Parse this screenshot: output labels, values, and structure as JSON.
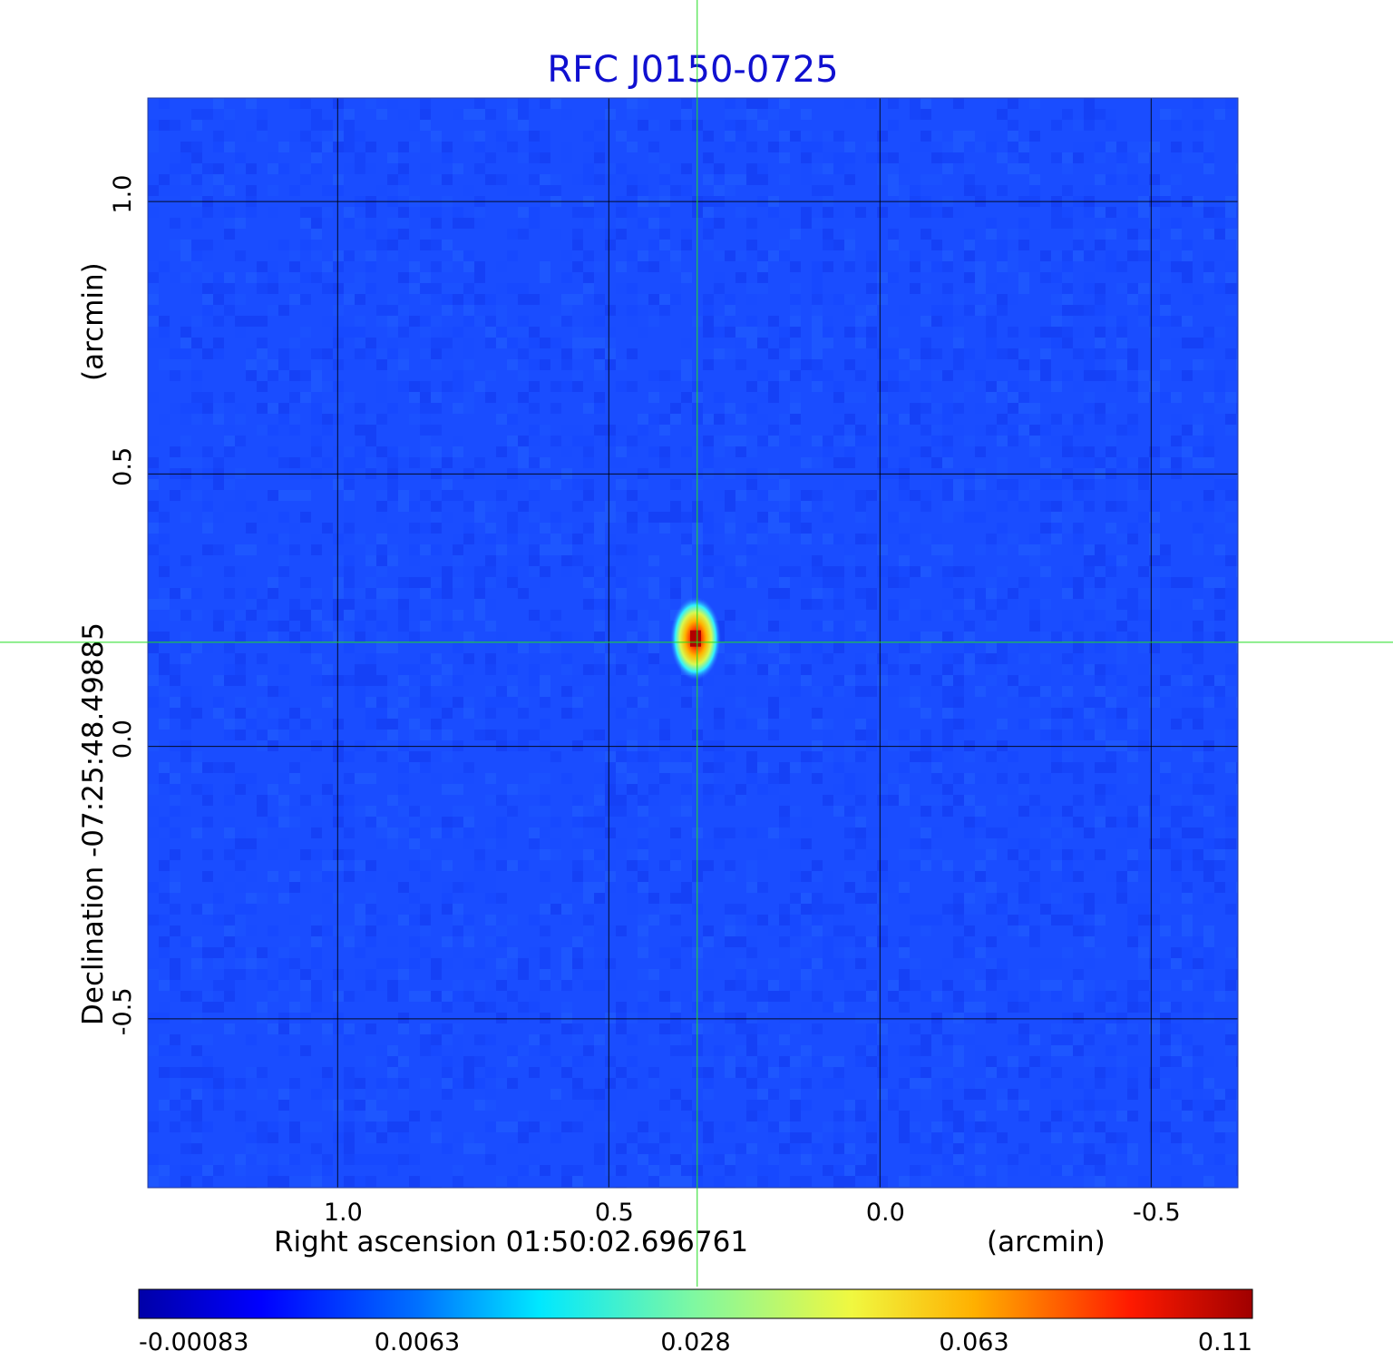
{
  "chart_data": {
    "type": "heatmap",
    "title": "RFC J0150-0725",
    "xlabel": "Right ascension  01:50:02.696761",
    "ylabel": "Declination  -07:25:48.49885",
    "x_unit": "(arcmin)",
    "y_unit": "(arcmin)",
    "x_ticks": [
      {
        "value": 1.0,
        "label": "1.0"
      },
      {
        "value": 0.5,
        "label": "0.5"
      },
      {
        "value": 0.0,
        "label": "0.0"
      },
      {
        "value": -0.5,
        "label": "-0.5"
      }
    ],
    "y_ticks": [
      {
        "value": 1.0,
        "label": "1.0"
      },
      {
        "value": 0.5,
        "label": "0.5"
      },
      {
        "value": 0.0,
        "label": "0.0"
      },
      {
        "value": -0.5,
        "label": "-0.5"
      }
    ],
    "xlim": [
      1.35,
      -0.66
    ],
    "ylim": [
      -0.81,
      1.19
    ],
    "x_reversed": true,
    "grid": true,
    "crosshair": {
      "x": 0.337,
      "y": 0.191
    },
    "source_peak": {
      "x": 0.34,
      "y": 0.198,
      "value": 0.11
    },
    "colorbar": {
      "colormap": "jet",
      "ticks": [
        {
          "label": "-0.00083",
          "frac": 0.0
        },
        {
          "label": "0.0063",
          "frac": 0.25
        },
        {
          "label": "0.028",
          "frac": 0.5
        },
        {
          "label": "0.063",
          "frac": 0.75
        },
        {
          "label": "0.11",
          "frac": 1.0
        }
      ]
    },
    "colors": {
      "title": "#1010d0",
      "background_field": "#1a4dff",
      "crosshair": "#22dd22",
      "grid": "#000000"
    }
  }
}
